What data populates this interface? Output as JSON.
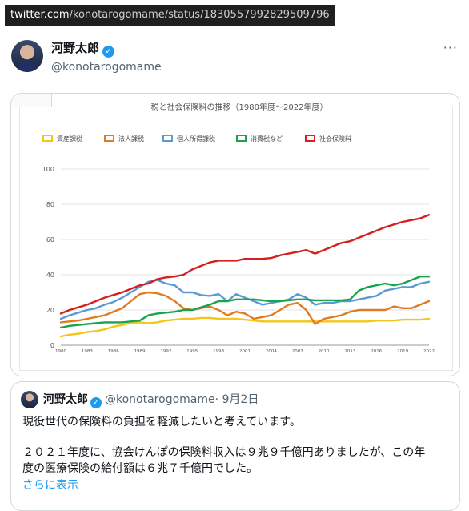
{
  "url": {
    "host": "twitter.com",
    "path": "/konotarogomame/status/1830557992829509796"
  },
  "tweet": {
    "author_name": "河野太郎",
    "handle": "@konotarogomame",
    "more": "···",
    "verified_icon": "verified-badge-icon"
  },
  "chart_data": {
    "type": "line",
    "title": "税と社会保険料の推移（1980年度～2022年度）",
    "xlabel": "",
    "ylabel": "",
    "legend_position": "top",
    "x_range": [
      1980,
      2022
    ],
    "ylim": [
      0,
      100
    ],
    "y_ticks": [
      "0",
      "20",
      "40",
      "60",
      "80",
      "100"
    ],
    "x_ticks": [
      "1980",
      "1983",
      "1986",
      "1989",
      "1992",
      "1995",
      "1998",
      "2001",
      "2004",
      "2007",
      "2010",
      "2013",
      "2016",
      "2019",
      "2022"
    ],
    "grid": true,
    "x": [
      1980,
      1981,
      1982,
      1983,
      1984,
      1985,
      1986,
      1987,
      1988,
      1989,
      1990,
      1991,
      1992,
      1993,
      1994,
      1995,
      1996,
      1997,
      1998,
      1999,
      2000,
      2001,
      2002,
      2003,
      2004,
      2005,
      2006,
      2007,
      2008,
      2009,
      2010,
      2011,
      2012,
      2013,
      2014,
      2015,
      2016,
      2017,
      2018,
      2019,
      2020,
      2021,
      2022
    ],
    "series": [
      {
        "name": "資産課税",
        "color": "#f5c518",
        "values": [
          5,
          6,
          6.5,
          7.5,
          8,
          9,
          10.5,
          11.5,
          12.5,
          13,
          12.5,
          13,
          14,
          14.5,
          15,
          15,
          15.5,
          15.5,
          15,
          15,
          15,
          14.5,
          14,
          13.5,
          13.5,
          13.5,
          13.5,
          13.5,
          13.5,
          13.5,
          13.5,
          13.5,
          13.5,
          13.5,
          13.5,
          13.5,
          14,
          14,
          14,
          14.5,
          14.5,
          14.5,
          15
        ]
      },
      {
        "name": "法人課税",
        "color": "#e07b24",
        "values": [
          13,
          13.5,
          14,
          15,
          16,
          17,
          19,
          21,
          25,
          29,
          30,
          29.5,
          28,
          25,
          21,
          20,
          21,
          22,
          20,
          17,
          19,
          18,
          15,
          16,
          17,
          20,
          23,
          24,
          20,
          12,
          15,
          16,
          17,
          19,
          20,
          20,
          20,
          20,
          22,
          21,
          21,
          23,
          25
        ]
      },
      {
        "name": "個人所得課税",
        "color": "#5b9bd5",
        "values": [
          15,
          17,
          18.5,
          20,
          21,
          23,
          24.5,
          27,
          30,
          33,
          36,
          37,
          35,
          34,
          30,
          30,
          28.5,
          28,
          29,
          25,
          29,
          27,
          25,
          23,
          24,
          25,
          26,
          29,
          27,
          23,
          24,
          24,
          25,
          25,
          26,
          27,
          28,
          31,
          32,
          33,
          33,
          35,
          36
        ]
      },
      {
        "name": "消費税など",
        "color": "#1aa34a",
        "values": [
          10,
          11,
          11.5,
          12,
          12.5,
          13,
          13,
          13,
          13.5,
          14,
          17,
          18,
          18.5,
          19,
          20,
          20,
          21.5,
          23,
          25,
          25,
          26,
          26,
          26,
          25.5,
          25,
          25,
          25.5,
          26,
          26,
          25.5,
          25.5,
          25.5,
          25.5,
          26,
          31,
          33,
          34,
          35,
          34,
          35,
          37,
          39,
          39
        ]
      },
      {
        "name": "社会保険料",
        "color": "#d62020",
        "values": [
          18,
          20,
          21.5,
          23,
          25,
          27,
          28.5,
          30,
          32,
          34,
          35,
          37.5,
          38.5,
          39,
          40,
          43,
          45,
          47,
          48,
          48,
          48,
          49,
          49,
          49,
          49.5,
          51,
          52,
          53,
          54,
          52,
          54,
          56,
          58,
          59,
          61,
          63,
          65,
          67,
          68.5,
          70,
          71,
          72,
          74
        ]
      }
    ]
  },
  "quote": {
    "author_name": "河野太郎",
    "handle": "@konotarogomame",
    "date": "· 9月2日",
    "verified_icon": "verified-badge-icon",
    "line1": "現役世代の保険料の負担を軽減したいと考えています。",
    "line2": "２０２１年度に、協会けんぽの保険料収入は９兆９千億円ありましたが、この年",
    "line3": "度の医療保険の給付額は６兆７千億円でした。",
    "more_link": "さらに表示"
  }
}
